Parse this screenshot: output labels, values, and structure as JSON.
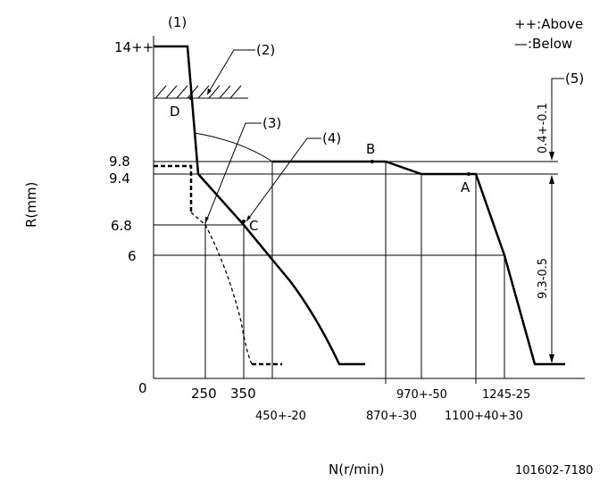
{
  "legend": {
    "above": "++:Above",
    "below": "—:Below"
  },
  "axes": {
    "y_label": "R(mm)",
    "x_label": "N(r/min)",
    "origin": "0",
    "y_ticks": {
      "r14": "14++",
      "r98": "9.8",
      "r94": "9.4",
      "r68": "6.8",
      "r6": "6"
    },
    "x_ticks": {
      "n250": "250",
      "n350": "350",
      "n450": "450+-20",
      "n870": "870+-30",
      "n970": "970+-50",
      "n1100": "1100+40+30",
      "n1245": "1245-25"
    }
  },
  "callouts": {
    "c1": "(1)",
    "c2": "(2)",
    "c3": "(3)",
    "c4": "(4)",
    "c5": "(5)"
  },
  "points": {
    "a": "A",
    "b": "B",
    "c": "C",
    "d": "D"
  },
  "dimensions": {
    "upper": "0.4+-0.1",
    "lower": "9.3-0.5"
  },
  "part_number": "101602-7180"
}
